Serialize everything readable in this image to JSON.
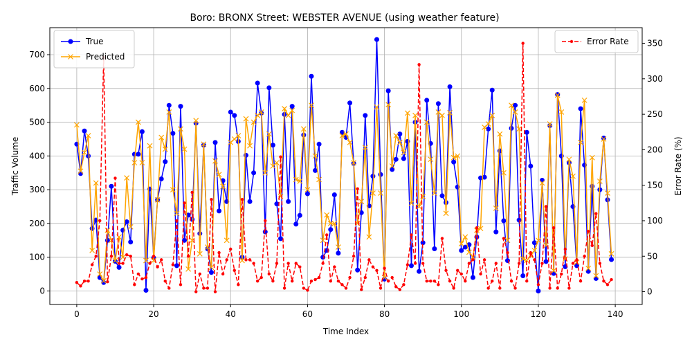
{
  "chart_data": {
    "type": "line",
    "title": "Boro: BRONX Street: WEBSTER AVENUE (using weather feature)",
    "xlabel": "Time Index",
    "ylabel": "Traffic Volume",
    "ylabel_right": "Error Rate (%)",
    "xlim": [
      -7,
      147
    ],
    "ylim": [
      -40,
      780
    ],
    "ylim_right": [
      -18,
      372
    ],
    "xticks": [
      "0",
      "20",
      "40",
      "60",
      "80",
      "100",
      "120",
      "140"
    ],
    "yticks": [
      "0",
      "100",
      "200",
      "300",
      "400",
      "500",
      "600",
      "700"
    ],
    "yticks_right": [
      "0",
      "50",
      "100",
      "150",
      "200",
      "250",
      "300",
      "350"
    ],
    "grid": true,
    "legend_left_position": "top-left",
    "legend_right_position": "top-right",
    "x": [
      0,
      1,
      2,
      3,
      4,
      5,
      6,
      7,
      8,
      9,
      10,
      11,
      12,
      13,
      14,
      15,
      16,
      17,
      18,
      19,
      20,
      21,
      22,
      23,
      24,
      25,
      26,
      27,
      28,
      29,
      30,
      31,
      32,
      33,
      34,
      35,
      36,
      37,
      38,
      39,
      40,
      41,
      42,
      43,
      44,
      45,
      46,
      47,
      48,
      49,
      50,
      51,
      52,
      53,
      54,
      55,
      56,
      57,
      58,
      59,
      60,
      61,
      62,
      63,
      64,
      65,
      66,
      67,
      68,
      69,
      70,
      71,
      72,
      73,
      74,
      75,
      76,
      77,
      78,
      79,
      80,
      81,
      82,
      83,
      84,
      85,
      86,
      87,
      88,
      89,
      90,
      91,
      92,
      93,
      94,
      95,
      96,
      97,
      98,
      99,
      100,
      101,
      102,
      103,
      104,
      105,
      106,
      107,
      108,
      109,
      110,
      111,
      112,
      113,
      114,
      115,
      116,
      117,
      118,
      119,
      120,
      121,
      122,
      123,
      124,
      125,
      126,
      127,
      128,
      129,
      130,
      131,
      132,
      133,
      134,
      135,
      136,
      137,
      138,
      139
    ],
    "series": [
      {
        "name": "True",
        "color": "#0000ff",
        "marker": "circle",
        "axis": "left",
        "values": [
          435,
          348,
          474,
          400,
          185,
          210,
          40,
          25,
          150,
          310,
          88,
          70,
          180,
          205,
          145,
          405,
          405,
          472,
          2,
          302,
          98,
          270,
          332,
          383,
          550,
          467,
          75,
          547,
          150,
          225,
          212,
          497,
          170,
          432,
          125,
          55,
          440,
          237,
          327,
          265,
          530,
          520,
          443,
          100,
          402,
          265,
          350,
          616,
          527,
          175,
          602,
          432,
          258,
          155,
          523,
          265,
          547,
          198,
          224,
          462,
          288,
          636,
          357,
          435,
          100,
          120,
          182,
          285,
          112,
          470,
          455,
          557,
          378,
          62,
          232,
          520,
          252,
          340,
          745,
          345,
          35,
          593,
          360,
          390,
          465,
          392,
          443,
          75,
          500,
          58,
          143,
          565,
          437,
          125,
          555,
          282,
          262,
          605,
          382,
          308,
          120,
          130,
          137,
          40,
          160,
          335,
          337,
          480,
          595,
          175,
          415,
          208,
          90,
          482,
          550,
          210,
          45,
          470,
          370,
          143,
          0,
          328,
          87,
          490,
          52,
          582,
          400,
          72,
          380,
          250,
          75,
          540,
          373,
          58,
          310,
          37,
          300,
          453,
          270,
          93
        ]
      },
      {
        "name": "Predicted",
        "color": "#ffa500",
        "marker": "x",
        "axis": "left",
        "values": [
          492,
          355,
          410,
          460,
          120,
          320,
          50,
          30,
          180,
          150,
          90,
          160,
          100,
          335,
          190,
          380,
          500,
          380,
          90,
          430,
          90,
          270,
          455,
          420,
          530,
          300,
          230,
          480,
          420,
          65,
          150,
          505,
          110,
          435,
          130,
          70,
          385,
          345,
          310,
          150,
          440,
          450,
          460,
          90,
          510,
          430,
          500,
          520,
          530,
          350,
          465,
          370,
          380,
          280,
          540,
          520,
          535,
          330,
          325,
          480,
          300,
          550,
          400,
          330,
          150,
          225,
          200,
          200,
          130,
          460,
          465,
          440,
          380,
          200,
          265,
          425,
          160,
          290,
          545,
          290,
          40,
          552,
          370,
          460,
          440,
          410,
          527,
          260,
          520,
          250,
          280,
          500,
          390,
          290,
          530,
          520,
          230,
          528,
          395,
          400,
          140,
          160,
          115,
          100,
          180,
          185,
          485,
          495,
          520,
          245,
          465,
          350,
          150,
          550,
          530,
          480,
          95,
          90,
          105,
          120,
          150,
          320,
          135,
          495,
          60,
          580,
          530,
          95,
          390,
          340,
          85,
          440,
          565,
          67,
          395,
          45,
          325,
          450,
          290,
          110
        ]
      },
      {
        "name": "Error Rate",
        "color": "#ff0000",
        "marker": "small-dot",
        "axis": "right",
        "values": [
          13,
          8,
          15,
          15,
          38,
          50,
          100,
          330,
          14,
          50,
          160,
          40,
          40,
          52,
          50,
          10,
          25,
          18,
          20,
          40,
          50,
          35,
          45,
          15,
          5,
          38,
          100,
          10,
          125,
          50,
          140,
          0,
          25,
          5,
          5,
          130,
          0,
          55,
          25,
          45,
          60,
          30,
          10,
          130,
          45,
          45,
          40,
          15,
          20,
          100,
          25,
          15,
          40,
          190,
          5,
          40,
          15,
          40,
          35,
          5,
          2,
          15,
          17,
          20,
          40,
          80,
          15,
          35,
          15,
          10,
          5,
          20,
          50,
          145,
          3,
          20,
          45,
          35,
          30,
          5,
          33,
          15,
          20,
          7,
          3,
          10,
          38,
          80,
          40,
          320,
          40,
          15,
          15,
          15,
          10,
          75,
          30,
          15,
          5,
          30,
          25,
          15,
          40,
          45,
          90,
          25,
          45,
          5,
          15,
          40,
          5,
          75,
          55,
          15,
          5,
          40,
          350,
          15,
          55,
          45,
          10,
          40,
          120,
          5,
          90,
          5,
          25,
          60,
          5,
          40,
          45,
          15,
          50,
          85,
          65,
          110,
          40,
          15,
          10,
          17
        ]
      }
    ]
  }
}
